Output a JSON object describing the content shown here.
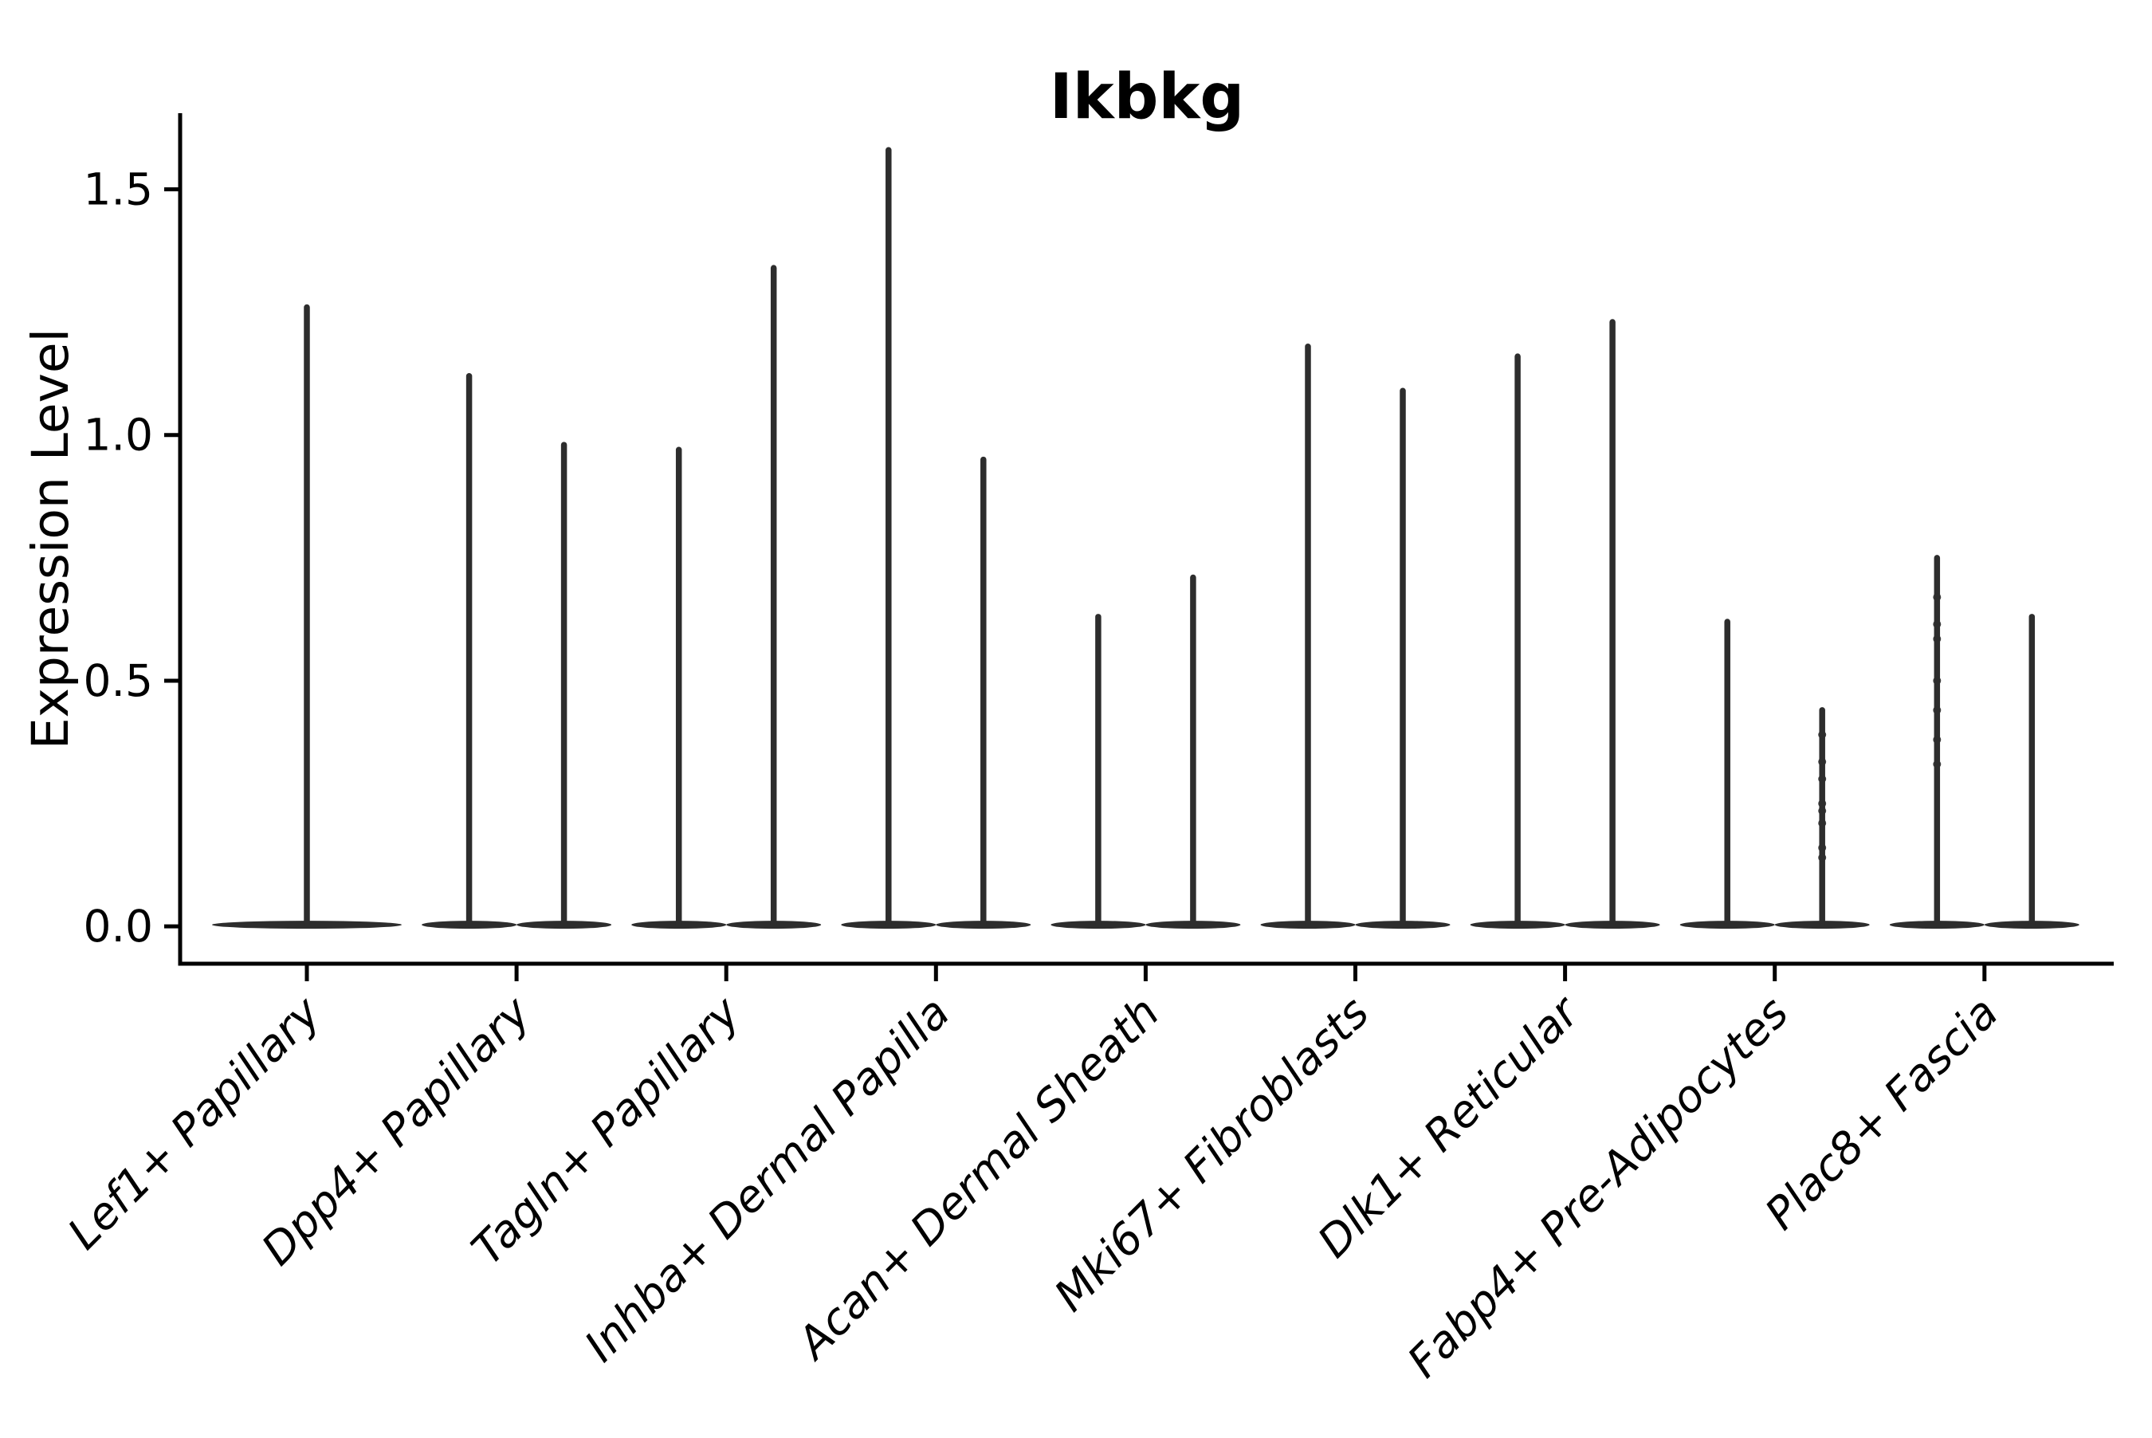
{
  "title": "Ikbkg",
  "chart_data": {
    "type": "violin",
    "title": "Ikbkg",
    "xlabel": "",
    "ylabel": "Expression Level",
    "ylim": [
      -0.076,
      1.655
    ],
    "yticks": [
      0.0,
      0.5,
      1.0,
      1.5
    ],
    "grid": false,
    "legend": null,
    "axis_color": "#000000",
    "violin_color": "#2d2d2d",
    "categories": [
      "Lef1+ Papillary",
      "Dpp4+ Papillary",
      "Tagln+ Papillary",
      "Inhba+ Dermal Papilla",
      "Acan+ Dermal Sheath",
      "Mki67+ Fibroblasts",
      "Dlk1+ Reticular",
      "Fabp4+ Pre-Adipocytes",
      "Plac8+ Fascia"
    ],
    "groups": [
      {
        "label": "Lef1+ Papillary",
        "violins": [
          {
            "pos": "center",
            "max": 1.26,
            "dots": []
          }
        ]
      },
      {
        "label": "Dpp4+ Papillary",
        "violins": [
          {
            "pos": "left",
            "max": 1.12,
            "dots": []
          },
          {
            "pos": "right",
            "max": 0.98,
            "dots": []
          }
        ]
      },
      {
        "label": "Tagln+ Papillary",
        "violins": [
          {
            "pos": "left",
            "max": 0.97,
            "dots": []
          },
          {
            "pos": "right",
            "max": 1.34,
            "dots": []
          }
        ]
      },
      {
        "label": "Inhba+ Dermal Papilla",
        "violins": [
          {
            "pos": "left",
            "max": 1.58,
            "dots": []
          },
          {
            "pos": "right",
            "max": 0.95,
            "dots": []
          }
        ]
      },
      {
        "label": "Acan+ Dermal Sheath",
        "violins": [
          {
            "pos": "left",
            "max": 0.63,
            "dots": []
          },
          {
            "pos": "right",
            "max": 0.71,
            "dots": []
          }
        ]
      },
      {
        "label": "Mki67+ Fibroblasts",
        "violins": [
          {
            "pos": "left",
            "max": 1.18,
            "dots": []
          },
          {
            "pos": "right",
            "max": 1.09,
            "dots": []
          }
        ]
      },
      {
        "label": "Dlk1+ Reticular",
        "violins": [
          {
            "pos": "left",
            "max": 1.16,
            "dots": []
          },
          {
            "pos": "right",
            "max": 1.23,
            "dots": []
          }
        ]
      },
      {
        "label": "Fabp4+ Pre-Adipocytes",
        "violins": [
          {
            "pos": "left",
            "max": 0.62,
            "dots": []
          },
          {
            "pos": "right",
            "max": 0.44,
            "dots": [
              0.39,
              0.335,
              0.3,
              0.25,
              0.235,
              0.21,
              0.16,
              0.14
            ]
          }
        ]
      },
      {
        "label": "Plac8+ Fascia",
        "violins": [
          {
            "pos": "left",
            "max": 0.75,
            "dots": [
              0.67,
              0.615,
              0.585,
              0.5,
              0.44,
              0.38,
              0.33
            ]
          },
          {
            "pos": "right",
            "max": 0.63,
            "dots": []
          }
        ]
      }
    ]
  }
}
